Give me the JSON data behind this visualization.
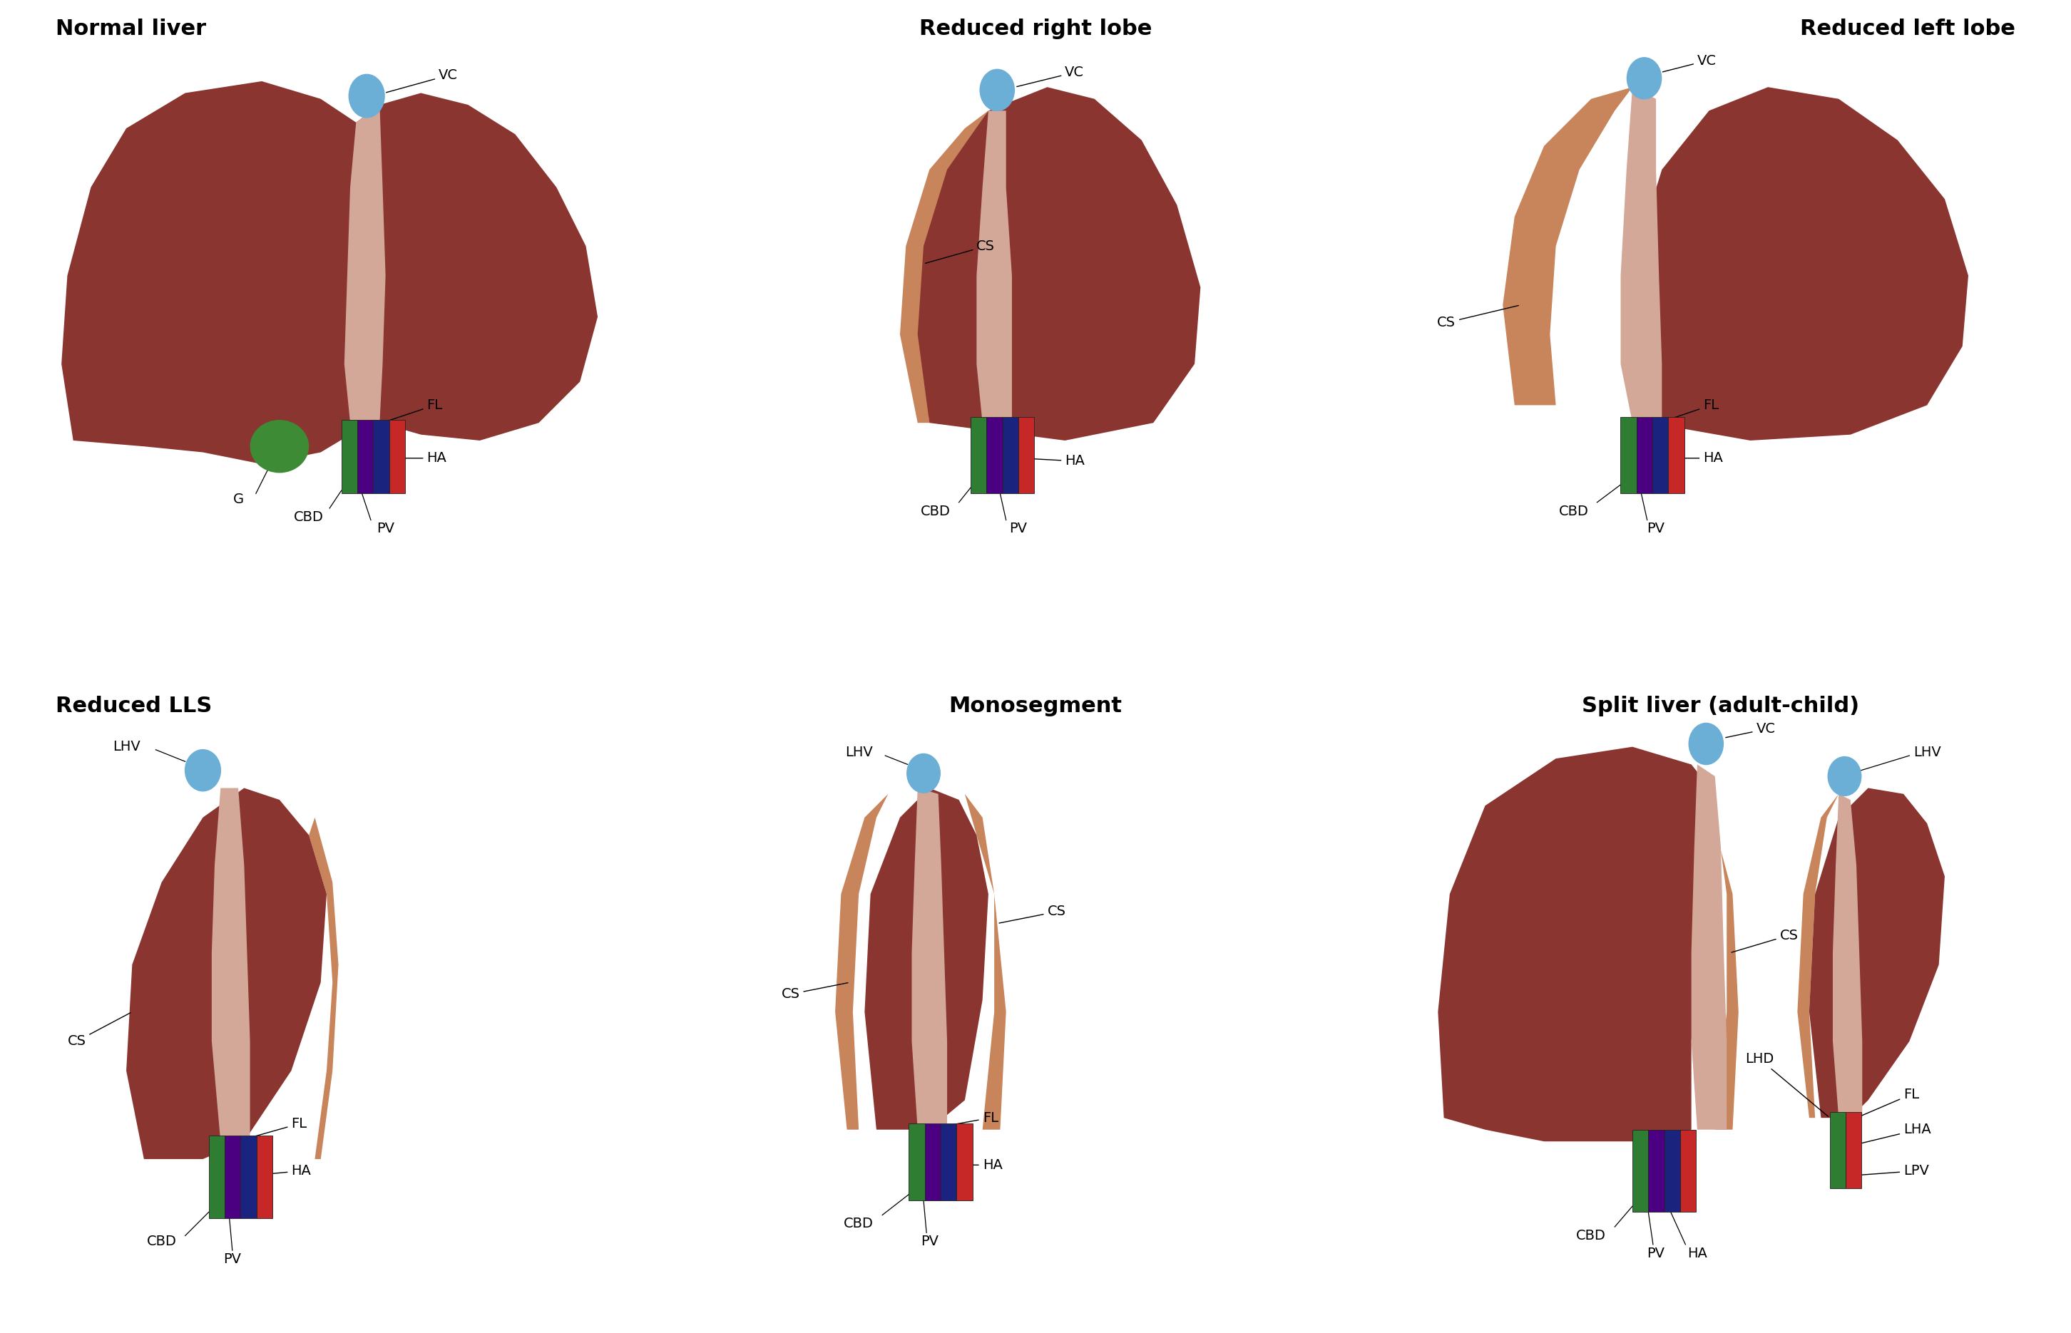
{
  "bg": "#ffffff",
  "lc": "#8B3530",
  "falc": "#D4A898",
  "cut": "#C8845A",
  "vc_c": "#6BAED6",
  "gb_c": "#3d8c35",
  "vp": "#4B0082",
  "vb": "#1a237e",
  "vg": "#2e7d32",
  "vr": "#c62828",
  "vw": "#f0f0f0",
  "tc": "#000000",
  "tfs": 22,
  "lfs": 14,
  "titles": [
    "Normal liver",
    "Reduced right lobe",
    "Reduced left lobe",
    "Reduced LLS",
    "Monosegment",
    "Split liver (adult-child)"
  ]
}
